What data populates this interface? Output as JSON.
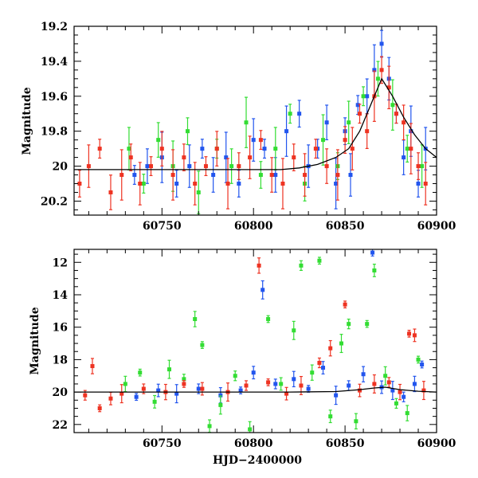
{
  "chart_data": [
    {
      "type": "scatter",
      "panel": "top",
      "title": "",
      "xlabel": "",
      "ylabel": "Magnitude",
      "xlim": [
        60702,
        60900
      ],
      "ylim": [
        20.28,
        19.2
      ],
      "y_inverted": true,
      "x_ticks": [
        60750,
        60800,
        60850,
        60900
      ],
      "x_tick_labels": [
        "60750",
        "60800",
        "60850",
        "60900"
      ],
      "y_ticks": [
        19.2,
        19.4,
        19.6,
        19.8,
        20,
        20.2
      ],
      "y_tick_labels": [
        "19.2",
        "19.4",
        "19.6",
        "19.8",
        "20",
        "20.2"
      ],
      "grid": false,
      "series": [
        {
          "color": "#2255ee",
          "x": [
            60735,
            60742,
            60750,
            60758,
            60765,
            60772,
            60778,
            60785,
            60792,
            60800,
            60806,
            60812,
            60818,
            60825,
            60830,
            60835,
            60840,
            60845,
            60850,
            60853,
            60857,
            60862,
            60866,
            60870,
            60874,
            60878,
            60882,
            60886,
            60890,
            60894
          ],
          "y": [
            20.05,
            20.0,
            19.95,
            20.1,
            20.0,
            19.9,
            20.05,
            19.95,
            20.1,
            19.85,
            19.9,
            20.05,
            19.8,
            19.7,
            20.0,
            19.9,
            19.75,
            20.1,
            19.8,
            20.05,
            19.65,
            19.6,
            19.45,
            19.3,
            19.5,
            19.7,
            19.95,
            19.8,
            20.1,
            19.9
          ]
        },
        {
          "color": "#33dd33",
          "x": [
            60732,
            60740,
            60748,
            60756,
            60764,
            60770,
            60780,
            60788,
            60796,
            60804,
            60812,
            60820,
            60828,
            60838,
            60846,
            60852,
            60860,
            60868,
            60876,
            60884,
            60892
          ],
          "y": [
            19.9,
            20.1,
            19.85,
            20.0,
            19.8,
            20.15,
            19.9,
            20.0,
            19.75,
            20.05,
            19.9,
            19.7,
            20.1,
            19.85,
            20.0,
            19.75,
            19.6,
            19.5,
            19.65,
            19.9,
            20.0
          ]
        },
        {
          "color": "#ee3322",
          "x": [
            60705,
            60710,
            60716,
            60722,
            60728,
            60733,
            60738,
            60744,
            60750,
            60756,
            60762,
            60768,
            60774,
            60780,
            60786,
            60792,
            60798,
            60804,
            60810,
            60816,
            60822,
            60828,
            60834,
            60840,
            60846,
            60850,
            60854,
            60858,
            60862,
            60866,
            60870,
            60874,
            60878,
            60882,
            60886,
            60890,
            60894
          ],
          "y": [
            20.1,
            20.0,
            19.9,
            20.15,
            20.05,
            19.95,
            20.1,
            20.0,
            19.9,
            20.05,
            19.95,
            20.1,
            20.0,
            19.9,
            20.1,
            20.0,
            19.95,
            19.85,
            20.05,
            20.1,
            19.95,
            20.05,
            19.9,
            20.0,
            20.05,
            19.85,
            19.9,
            19.7,
            19.8,
            19.6,
            19.45,
            19.55,
            19.7,
            19.75,
            19.9,
            20.0,
            20.1
          ]
        }
      ],
      "model_curve": {
        "color": "#000000",
        "x": [
          60702,
          60720,
          60740,
          60760,
          60780,
          60800,
          60815,
          60825,
          60835,
          60845,
          60852,
          60858,
          60864,
          60870,
          60876,
          60882,
          60888,
          60894,
          60900
        ],
        "y": [
          20.02,
          20.02,
          20.02,
          20.02,
          20.02,
          20.02,
          20.02,
          20.01,
          19.99,
          19.95,
          19.9,
          19.8,
          19.65,
          19.5,
          19.6,
          19.72,
          19.82,
          19.9,
          19.95
        ]
      }
    },
    {
      "type": "scatter",
      "panel": "bottom",
      "title": "",
      "xlabel": "HJD−2400000",
      "ylabel": "Magnitude",
      "xlim": [
        60702,
        60900
      ],
      "ylim": [
        22.5,
        11.2
      ],
      "y_inverted": true,
      "x_ticks": [
        60750,
        60800,
        60850,
        60900
      ],
      "x_tick_labels": [
        "60750",
        "60800",
        "60850",
        "60900"
      ],
      "y_ticks": [
        12,
        14,
        16,
        18,
        20,
        22
      ],
      "y_tick_labels": [
        "12",
        "14",
        "16",
        "18",
        "20",
        "22"
      ],
      "grid": false,
      "series": [
        {
          "color": "#2255ee",
          "x": [
            60736,
            60748,
            60758,
            60770,
            60782,
            60793,
            60800,
            60805,
            60812,
            60822,
            60830,
            60838,
            60845,
            60852,
            60860,
            60865,
            60870,
            60876,
            60882,
            60888,
            60892
          ],
          "y": [
            20.3,
            19.9,
            20.1,
            19.8,
            20.2,
            19.9,
            18.8,
            13.7,
            19.5,
            19.2,
            19.8,
            18.5,
            20.2,
            19.6,
            18.9,
            11.4,
            19.7,
            19.9,
            20.3,
            19.5,
            18.3
          ]
        },
        {
          "color": "#33dd33",
          "x": [
            60730,
            60738,
            60746,
            60754,
            60762,
            60768,
            60772,
            60776,
            60782,
            60790,
            60798,
            60808,
            60815,
            60822,
            60826,
            60832,
            60836,
            60842,
            60848,
            60852,
            60856,
            60862,
            60866,
            60872,
            60878,
            60884,
            60890
          ],
          "y": [
            19.5,
            18.8,
            20.6,
            18.6,
            19.2,
            15.5,
            17.1,
            22.1,
            20.8,
            19.0,
            22.3,
            15.5,
            19.5,
            16.2,
            12.2,
            18.8,
            11.9,
            21.5,
            17.0,
            15.8,
            21.8,
            15.8,
            12.5,
            19.0,
            20.7,
            21.3,
            18.0
          ]
        },
        {
          "color": "#ee3322",
          "x": [
            60708,
            60712,
            60716,
            60722,
            60728,
            60740,
            60752,
            60762,
            60772,
            60786,
            60796,
            60803,
            60808,
            60818,
            60826,
            60836,
            60842,
            60850,
            60858,
            60866,
            60874,
            60880,
            60885,
            60888,
            60893
          ],
          "y": [
            20.2,
            18.4,
            21.0,
            20.4,
            20.1,
            19.8,
            20.0,
            19.5,
            19.8,
            20.0,
            19.6,
            12.2,
            19.4,
            20.1,
            19.6,
            18.2,
            17.3,
            14.6,
            19.9,
            19.5,
            19.4,
            20.0,
            16.4,
            16.5,
            19.9
          ]
        }
      ],
      "model_curve": {
        "color": "#000000",
        "x": [
          60702,
          60740,
          60780,
          60820,
          60845,
          60858,
          60866,
          60872,
          60880,
          60890,
          60900
        ],
        "y": [
          20.0,
          20.0,
          20.0,
          20.0,
          19.97,
          19.85,
          19.75,
          19.7,
          19.85,
          19.95,
          20.0
        ]
      }
    }
  ]
}
